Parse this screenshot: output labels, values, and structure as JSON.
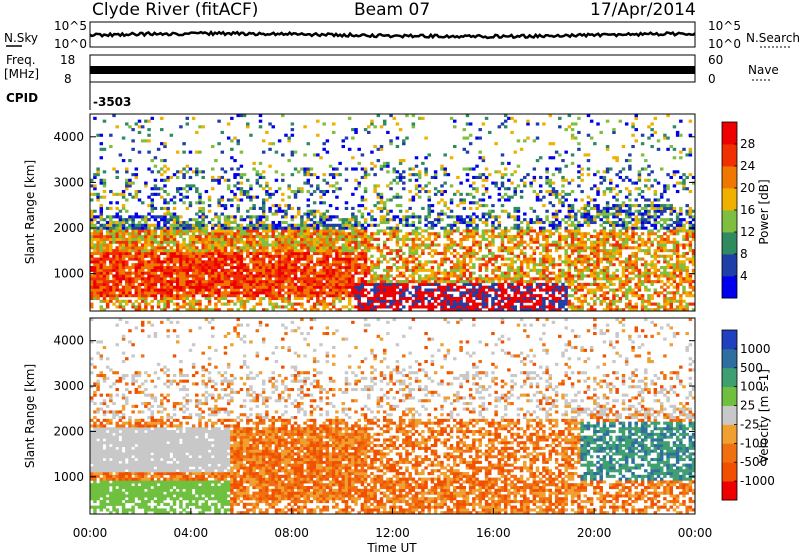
{
  "header": {
    "station": "Clyde River (fitACF)",
    "beam": "Beam 07",
    "date": "17/Apr/2014"
  },
  "strip": {
    "nsky_label": "N.Sky",
    "nsearch_label": "N.Search",
    "nsky_ticks": [
      "10^5",
      "10^0"
    ],
    "nsearch_ticks": [
      "10^5",
      "10^0"
    ],
    "freq_label_1": "Freq.",
    "freq_label_2": "[MHz]",
    "freq_ticks": [
      "18",
      "8"
    ],
    "nave_label": "Nave",
    "nave_ticks": [
      "60",
      "0"
    ],
    "cpid_label": "CPID",
    "cpid_value": "-3503"
  },
  "colors": {
    "power": [
      "#0000ee",
      "#1f3fa8",
      "#2f8a60",
      "#7fbf3f",
      "#f0b000",
      "#f07800",
      "#f03000",
      "#ee0000"
    ],
    "velocity": [
      "#2040c0",
      "#2f6fa0",
      "#3f9f70",
      "#70c040",
      "#c8c8c8",
      "#f0a030",
      "#f07010",
      "#f05000",
      "#ee0000"
    ],
    "ground_scatter": "#c8c8c8"
  },
  "chart_data": [
    {
      "type": "heatmap",
      "panel": "power",
      "xlabel": "",
      "ylabel": "Slant Range [km]",
      "xlim": [
        0,
        24
      ],
      "ylim": [
        180,
        4500
      ],
      "yticks": [
        "1000",
        "2000",
        "3000",
        "4000"
      ],
      "colorbar": {
        "label": "Power [dB]",
        "ticks": [
          "4",
          "8",
          "12",
          "16",
          "20",
          "24",
          "28"
        ],
        "range": [
          0,
          32
        ]
      }
    },
    {
      "type": "heatmap",
      "panel": "velocity",
      "xlabel": "Time UT",
      "ylabel": "Slant Range [km]",
      "xlim": [
        0,
        24
      ],
      "ylim": [
        180,
        4500
      ],
      "xticks": [
        "00:00",
        "04:00",
        "08:00",
        "12:00",
        "16:00",
        "20:00",
        "00:00"
      ],
      "yticks": [
        "1000",
        "2000",
        "3000",
        "4000"
      ],
      "colorbar": {
        "label": "Velocity [m s-1]",
        "ticks": [
          "1000",
          "500",
          "100",
          "25",
          "-25",
          "-100",
          "-500",
          "-1000"
        ]
      }
    }
  ]
}
